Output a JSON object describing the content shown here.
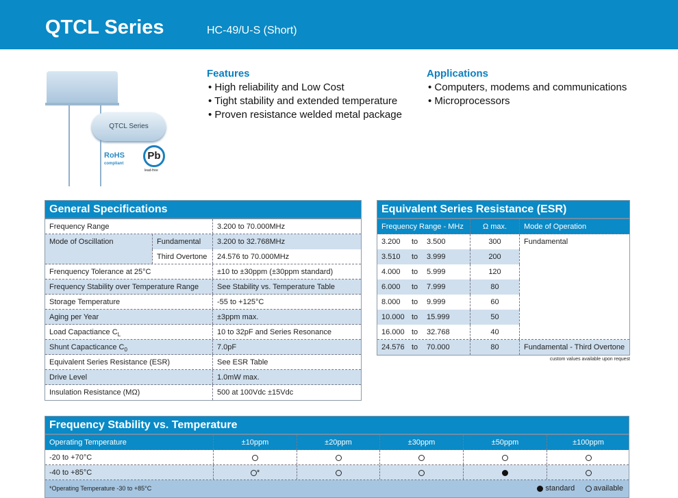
{
  "header": {
    "title": "QTCL Series",
    "subtitle": "HC-49/U-S (Short)",
    "brand_color": "#0a8ac6"
  },
  "product_image": {
    "label": "QTCL Series",
    "rohs": "RoHS",
    "rohs_sub": "compliant",
    "pb": "Pb",
    "pb_sub": "lead-free"
  },
  "features": {
    "heading": "Features",
    "items": [
      "High reliability and Low Cost",
      "Tight stability and extended temperature",
      "Proven resistance welded metal package"
    ]
  },
  "applications": {
    "heading": "Applications",
    "items": [
      "Computers, modems and communications",
      "Microprocessors"
    ]
  },
  "general": {
    "title": "General Specifications",
    "rows": [
      {
        "label": "Frequency Range",
        "value": "3.200 to 70.000MHz"
      },
      {
        "label": "Mode of Oscillation",
        "sub": "Fundamental",
        "value": "3.200 to 32.768MHz"
      },
      {
        "label": "",
        "sub": "Third Overtone",
        "value": "24.576 to 70.000MHz"
      },
      {
        "label": "Frenquency Tolerance at 25°C",
        "value": "±10 to ±30ppm (±30ppm standard)"
      },
      {
        "label": "Frequency Stability over Temperature Range",
        "value": "See Stability vs. Temperature Table"
      },
      {
        "label": "Storage Temperature",
        "value": "-55 to +125°C"
      },
      {
        "label": "Aging per Year",
        "value": "±3ppm max."
      },
      {
        "label": "Load Capactiance C",
        "label_sub": "L",
        "value": "10 to 32pF and Series Resonance"
      },
      {
        "label": "Shunt Capacticance C",
        "label_sub": "0",
        "value": "7.0pF"
      },
      {
        "label": "Equivalent Series Resistance (ESR)",
        "value": "See ESR Table"
      },
      {
        "label": "Drive Level",
        "value": "1.0mW max."
      },
      {
        "label": "Insulation Resistance (MΩ)",
        "value": "500 at 100Vdc ±15Vdc"
      }
    ]
  },
  "esr": {
    "title": "Equivalent Series Resistance (ESR)",
    "headers": [
      "Frequency Range - MHz",
      "Ω max.",
      "Mode of Operation"
    ],
    "to": "to",
    "rows": [
      {
        "from": "3.200",
        "to": "3.500",
        "ohm": "300",
        "mode": "Fundamental"
      },
      {
        "from": "3.510",
        "to": "3.999",
        "ohm": "200",
        "mode": ""
      },
      {
        "from": "4.000",
        "to": "5.999",
        "ohm": "120",
        "mode": ""
      },
      {
        "from": "6.000",
        "to": "7.999",
        "ohm": "80",
        "mode": ""
      },
      {
        "from": "8.000",
        "to": "9.999",
        "ohm": "60",
        "mode": ""
      },
      {
        "from": "10.000",
        "to": "15.999",
        "ohm": "50",
        "mode": ""
      },
      {
        "from": "16.000",
        "to": "32.768",
        "ohm": "40",
        "mode": ""
      },
      {
        "from": "24.576",
        "to": "70.000",
        "ohm": "80",
        "mode": "Fundamental - Third Overtone"
      }
    ],
    "note": "custom values available upon request"
  },
  "stability": {
    "title": "Frequency Stability vs. Temperature",
    "headers": [
      "Operating Temperature",
      "±10ppm",
      "±20ppm",
      "±30ppm",
      "±50ppm",
      "±100ppm"
    ],
    "rows": [
      {
        "temp": "-20 to +70°C",
        "cells": [
          "available",
          "available",
          "available",
          "available",
          "available"
        ],
        "marks": [
          "",
          "",
          "",
          "",
          ""
        ]
      },
      {
        "temp": "-40 to +85°C",
        "cells": [
          "available",
          "available",
          "available",
          "standard",
          "available"
        ],
        "marks": [
          "*",
          "",
          "",
          "",
          ""
        ]
      }
    ],
    "footnote": "*Operating Temperature -30 to +85°C",
    "legend_standard": "standard",
    "legend_available": "available"
  }
}
